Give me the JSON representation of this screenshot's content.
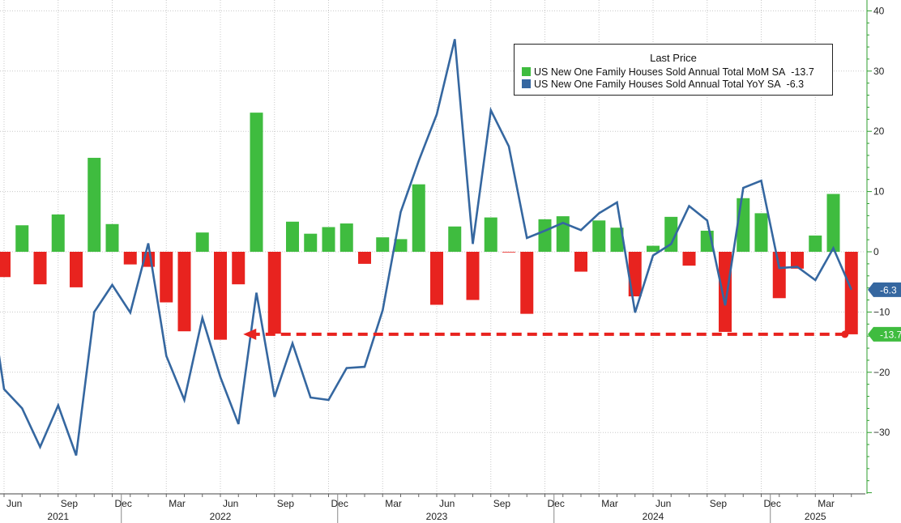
{
  "chart_data": {
    "type": "bar+line",
    "legend": {
      "title": "Last Price",
      "placement": "top-right",
      "entries": [
        {
          "label": "US New One Family Houses Sold Annual Total MoM SA",
          "value": "-13.7",
          "color": "#3fbc3f"
        },
        {
          "label": "US New One Family Houses Sold Annual Total YoY SA",
          "value": "-6.3",
          "color": "#3567a0"
        }
      ]
    },
    "x": [
      "2021-06",
      "2021-07",
      "2021-08",
      "2021-09",
      "2021-10",
      "2021-11",
      "2021-12",
      "2022-01",
      "2022-02",
      "2022-03",
      "2022-04",
      "2022-05",
      "2022-06",
      "2022-07",
      "2022-08",
      "2022-09",
      "2022-10",
      "2022-11",
      "2022-12",
      "2023-01",
      "2023-02",
      "2023-03",
      "2023-04",
      "2023-05",
      "2023-06",
      "2023-07",
      "2023-08",
      "2023-09",
      "2023-10",
      "2023-11",
      "2023-12",
      "2024-01",
      "2024-02",
      "2024-03",
      "2024-04",
      "2024-05",
      "2024-06",
      "2024-07",
      "2024-08",
      "2024-09",
      "2024-10",
      "2024-11",
      "2024-12",
      "2025-01",
      "2025-02",
      "2025-03",
      "2025-04",
      "2025-05"
    ],
    "x_tick_labels": [
      {
        "month": "2021-06",
        "label": "Jun"
      },
      {
        "month": "2021-09",
        "label": "Sep"
      },
      {
        "month": "2021-12",
        "label": "Dec"
      },
      {
        "month": "2022-03",
        "label": "Mar"
      },
      {
        "month": "2022-06",
        "label": "Jun"
      },
      {
        "month": "2022-09",
        "label": "Sep"
      },
      {
        "month": "2022-12",
        "label": "Dec"
      },
      {
        "month": "2023-03",
        "label": "Mar"
      },
      {
        "month": "2023-06",
        "label": "Jun"
      },
      {
        "month": "2023-09",
        "label": "Sep"
      },
      {
        "month": "2023-12",
        "label": "Dec"
      },
      {
        "month": "2024-03",
        "label": "Mar"
      },
      {
        "month": "2024-06",
        "label": "Jun"
      },
      {
        "month": "2024-09",
        "label": "Sep"
      },
      {
        "month": "2024-12",
        "label": "Dec"
      },
      {
        "month": "2025-03",
        "label": "Mar"
      }
    ],
    "year_labels": [
      {
        "month": "2021-09",
        "label": "2021"
      },
      {
        "month": "2022-06",
        "label": "2022"
      },
      {
        "month": "2023-06",
        "label": "2023"
      },
      {
        "month": "2024-06",
        "label": "2024"
      },
      {
        "month": "2025-03",
        "label": "2025"
      }
    ],
    "series": [
      {
        "name": "US New One Family Houses Sold Annual Total MoM SA",
        "type": "bar",
        "positive_color": "#3fbc3f",
        "negative_color": "#e8231f",
        "values": [
          -4.2,
          4.4,
          -5.4,
          6.2,
          -5.9,
          15.6,
          4.6,
          -2.1,
          -2.5,
          -8.4,
          -13.2,
          3.2,
          -14.6,
          -5.4,
          23.1,
          -13.6,
          5.0,
          3.0,
          4.1,
          4.7,
          -2.0,
          2.4,
          2.1,
          11.2,
          -8.8,
          4.2,
          -8.0,
          5.7,
          -0.1,
          -10.3,
          5.4,
          5.9,
          -3.3,
          5.2,
          4.0,
          -7.4,
          1.0,
          5.8,
          -2.3,
          3.5,
          -13.3,
          8.9,
          6.4,
          -7.7,
          -2.8,
          2.7,
          9.6,
          -13.7
        ]
      },
      {
        "name": "US New One Family Houses Sold Annual Total YoY SA",
        "type": "line",
        "color": "#3567a0",
        "values": [
          -22.8,
          -26.0,
          -32.4,
          -25.5,
          -33.8,
          -10.0,
          -5.5,
          -10.1,
          1.4,
          -17.3,
          -24.6,
          -11.0,
          -20.8,
          -28.6,
          -6.8,
          -24.1,
          -15.2,
          -24.2,
          -24.6,
          -19.3,
          -19.1,
          -9.7,
          6.6,
          15.1,
          22.8,
          35.3,
          1.3,
          23.5,
          17.5,
          2.3,
          3.5,
          4.8,
          3.6,
          6.4,
          8.2,
          -10.1,
          -0.6,
          1.3,
          7.6,
          5.2,
          -8.9,
          10.6,
          11.8,
          -2.7,
          -2.5,
          -4.7,
          0.6,
          -6.3
        ]
      }
    ],
    "y_axis": {
      "position": "right",
      "ylim": [
        -40,
        40
      ],
      "ticks": [
        40,
        30,
        20,
        10,
        0,
        -10,
        -20,
        -30
      ],
      "color": "#2e9e2e"
    },
    "annotations": [
      {
        "type": "dashed-arrow",
        "color": "#e8231f",
        "y": -13.7,
        "from": "2025-05",
        "to": "2022-07"
      },
      {
        "type": "value-tag",
        "text": "-6.3",
        "y": -6.3,
        "color": "#3567a0"
      },
      {
        "type": "value-tag",
        "text": "-13.7",
        "y": -13.7,
        "color": "#3fbc3f"
      }
    ],
    "grid": true
  }
}
